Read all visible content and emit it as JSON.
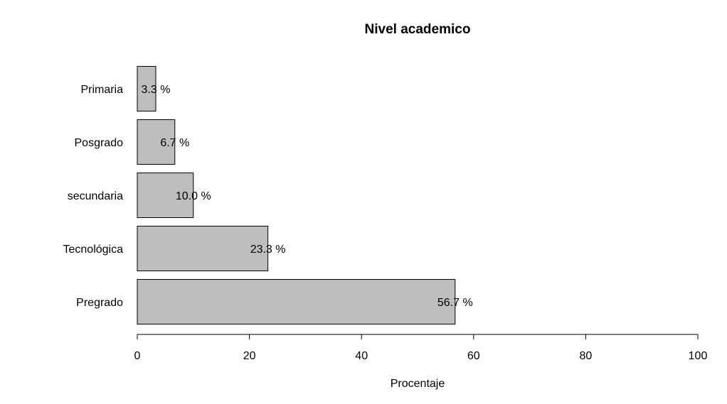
{
  "chart_data": {
    "type": "bar",
    "orientation": "horizontal",
    "title": "Nivel academico",
    "xlabel": "Procentaje",
    "ylabel": "",
    "xlim": [
      0,
      100
    ],
    "xticks": [
      0,
      20,
      40,
      60,
      80,
      100
    ],
    "categories": [
      "Pregrado",
      "Tecnológica",
      "secundaria",
      "Posgrado",
      "Primaria"
    ],
    "values": [
      56.7,
      23.3,
      10.0,
      6.7,
      3.3
    ],
    "data_labels": [
      "56.7 %",
      "23.3 %",
      "10.0 %",
      "6.7 %",
      "3.3 %"
    ],
    "bar_color": "#bebebe",
    "grid": false,
    "legend": "none"
  }
}
